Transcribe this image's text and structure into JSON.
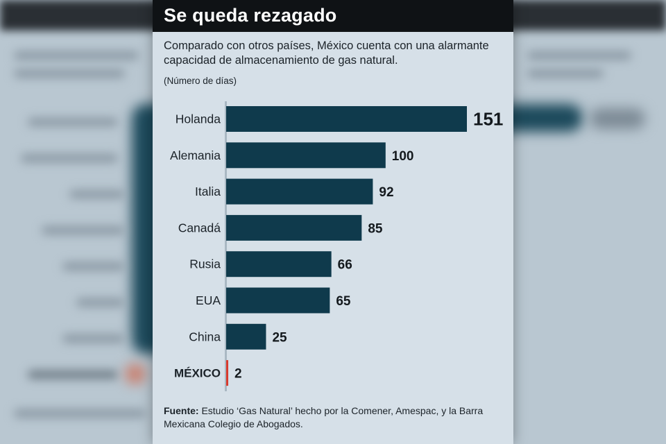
{
  "title": "Se queda rezagado",
  "subtitle": "Comparado con otros países, México cuenta con una alarmante capacidad de almacenamiento de gas natural.",
  "unit_note": "(Número de días)",
  "source_label": "Fuente:",
  "source_text": " Estudio ‘Gas Natural’ hecho por la Comener, Amespac, y la Barra Mexicana Colegio de Abogados.",
  "colors": {
    "bar": "#0f3a4c",
    "highlight": "#d83a2e",
    "card_bg": "#d6e0e8",
    "title_bg": "#0f1215"
  },
  "chart_data": {
    "type": "bar",
    "orientation": "horizontal",
    "title": "Se queda rezagado",
    "categories": [
      "Holanda",
      "Alemania",
      "Italia",
      "Canadá",
      "Rusia",
      "EUA",
      "China",
      "MÉXICO"
    ],
    "values": [
      151,
      100,
      92,
      85,
      66,
      65,
      25,
      2
    ],
    "highlight_category": "MÉXICO",
    "xlim": [
      0,
      151
    ],
    "grid": false,
    "legend": "none"
  }
}
